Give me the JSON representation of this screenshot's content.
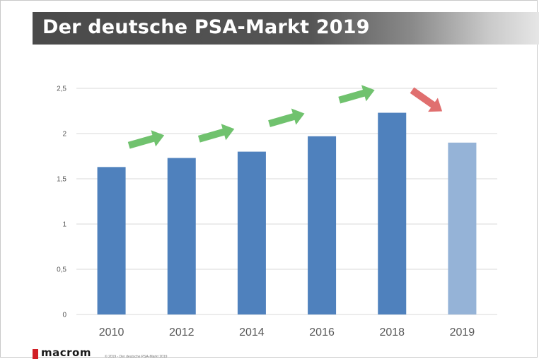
{
  "slide": {
    "title": "Der deutsche PSA-Markt 2019",
    "logo_text": "macrom",
    "footer_text": "© 2019 - Der deutsche PSA-Markt 2019"
  },
  "colors": {
    "bar": "#4f81bd",
    "bar_highlight": "#95b3d7",
    "arrow_up": "#70c26e",
    "arrow_down": "#e06f6f",
    "grid": "#d9d9d9",
    "tick_text": "#595959",
    "logo_red": "#d11f26"
  },
  "chart_data": {
    "type": "bar",
    "categories": [
      "2010",
      "2012",
      "2014",
      "2016",
      "2018",
      "2019"
    ],
    "values": [
      1.63,
      1.73,
      1.8,
      1.97,
      2.23,
      1.9
    ],
    "ylim": [
      0,
      2.5
    ],
    "yticks": [
      "0",
      "0,5",
      "1",
      "1,5",
      "2",
      "2,5"
    ],
    "grid": true,
    "legend": "none",
    "title": "",
    "xlabel": "",
    "ylabel": "",
    "trend_arrows": [
      "up",
      "up",
      "up",
      "up",
      "down"
    ]
  }
}
